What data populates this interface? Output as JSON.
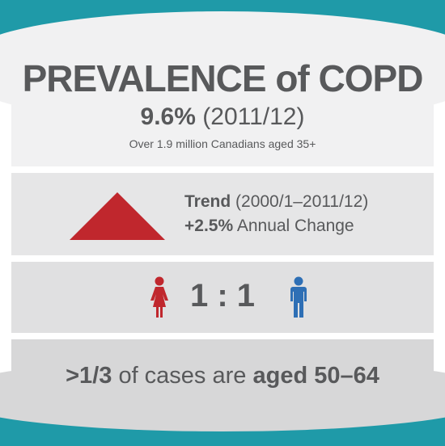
{
  "colors": {
    "teal": "#1f9aa8",
    "red_accent": "#c0272d",
    "blue_accent": "#2e6fb5",
    "text_gray": "#58595b"
  },
  "header": {
    "title": "PREVALENCE of COPD",
    "rate": "9.6%",
    "period": "(2011/12)",
    "subtitle": "Over 1.9 million Canadians aged 35+"
  },
  "trend": {
    "icon": "up-triangle-icon",
    "label": "Trend",
    "range": "(2000/1–2011/12)",
    "change_value": "+2.5%",
    "change_label": "Annual Change"
  },
  "sex_ratio": {
    "female_icon": "female-person-icon",
    "male_icon": "male-person-icon",
    "ratio": "1 : 1"
  },
  "age": {
    "fraction": ">1/3",
    "middle_text": "of cases are",
    "age_group": "aged 50–64"
  }
}
